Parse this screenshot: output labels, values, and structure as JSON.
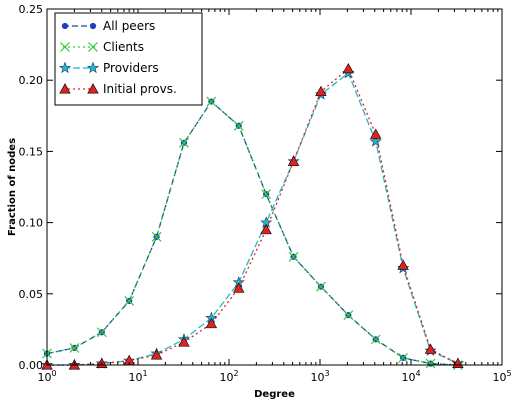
{
  "chart_data": {
    "type": "line",
    "xscale": "log",
    "xlabel": "Degree",
    "ylabel": "Fraction of nodes",
    "xlim": [
      1,
      100000
    ],
    "ylim": [
      0,
      0.25
    ],
    "x_ticks": [
      {
        "value": 1,
        "label": "10",
        "exp": "0"
      },
      {
        "value": 10,
        "label": "10",
        "exp": "1"
      },
      {
        "value": 100,
        "label": "10",
        "exp": "2"
      },
      {
        "value": 1000,
        "label": "10",
        "exp": "3"
      },
      {
        "value": 10000,
        "label": "10",
        "exp": "4"
      },
      {
        "value": 100000,
        "label": "10",
        "exp": "5"
      }
    ],
    "y_ticks": [
      {
        "value": 0,
        "label": "0.00"
      },
      {
        "value": 0.05,
        "label": "0.05"
      },
      {
        "value": 0.1,
        "label": "0.10"
      },
      {
        "value": 0.15,
        "label": "0.15"
      },
      {
        "value": 0.2,
        "label": "0.20"
      },
      {
        "value": 0.25,
        "label": "0.25"
      }
    ],
    "legend_position": "top-left",
    "series": [
      {
        "name": "All peers",
        "color": "#1f3fbf",
        "dash": "6,3",
        "marker": "dot",
        "x": [
          1,
          2,
          4,
          8,
          16,
          32,
          64,
          128,
          256,
          512,
          1024,
          2048,
          4096,
          8192,
          16384,
          32768
        ],
        "y": [
          0.008,
          0.012,
          0.023,
          0.045,
          0.09,
          0.156,
          0.185,
          0.168,
          0.12,
          0.076,
          0.055,
          0.035,
          0.018,
          0.005,
          0.001,
          0.0
        ]
      },
      {
        "name": "Clients",
        "color": "#33cc33",
        "dash": "2,3",
        "marker": "x",
        "x": [
          1,
          2,
          4,
          8,
          16,
          32,
          64,
          128,
          256,
          512,
          1024,
          2048,
          4096,
          8192,
          16384,
          32768
        ],
        "y": [
          0.008,
          0.012,
          0.023,
          0.045,
          0.09,
          0.156,
          0.185,
          0.168,
          0.12,
          0.076,
          0.055,
          0.035,
          0.018,
          0.005,
          0.001,
          0.0
        ]
      },
      {
        "name": "Providers",
        "color": "#22b8c8",
        "dash": "7,3",
        "marker": "star",
        "x": [
          1,
          2,
          4,
          8,
          16,
          32,
          64,
          128,
          256,
          512,
          1024,
          2048,
          4096,
          8192,
          16384,
          32768
        ],
        "y": [
          0.0,
          0.0,
          0.001,
          0.003,
          0.008,
          0.018,
          0.033,
          0.058,
          0.1,
          0.143,
          0.19,
          0.205,
          0.157,
          0.068,
          0.01,
          0.001
        ]
      },
      {
        "name": "Initial provs.",
        "color": "#dd2222",
        "dash": "2,3",
        "marker": "triangle",
        "x": [
          1,
          2,
          4,
          8,
          16,
          32,
          64,
          128,
          256,
          512,
          1024,
          2048,
          4096,
          8192,
          16384,
          32768
        ],
        "y": [
          0.0,
          0.0,
          0.001,
          0.003,
          0.007,
          0.016,
          0.029,
          0.054,
          0.095,
          0.143,
          0.192,
          0.208,
          0.162,
          0.07,
          0.011,
          0.001
        ]
      }
    ]
  }
}
